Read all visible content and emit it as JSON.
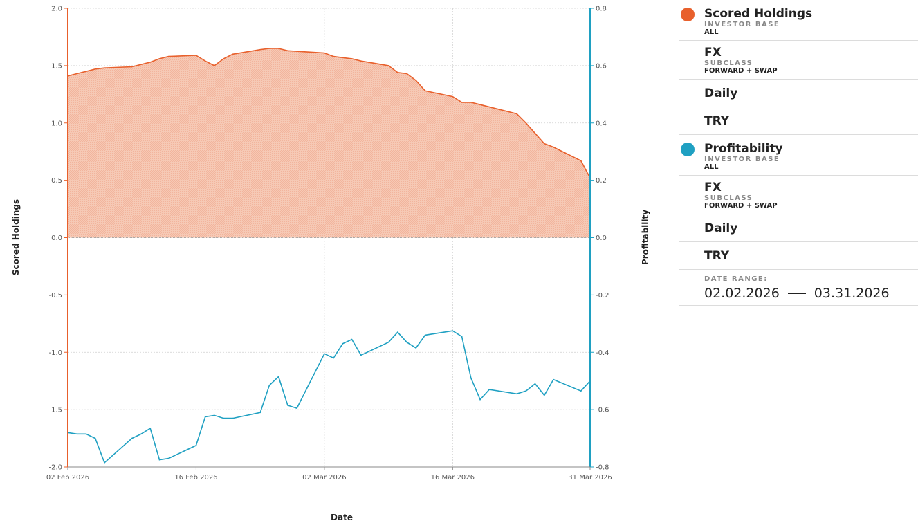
{
  "chart_data": {
    "type": "area+line",
    "xlabel": "Date",
    "ylabel_left": "Scored Holdings",
    "ylabel_right": "Profitability",
    "x_range": [
      "2026-02-02",
      "2026-03-31"
    ],
    "x_ticks": [
      {
        "date": "2026-02-02",
        "label": "02 Feb 2026"
      },
      {
        "date": "2026-02-16",
        "label": "16 Feb 2026"
      },
      {
        "date": "2026-03-02",
        "label": "02 Mar 2026"
      },
      {
        "date": "2026-03-16",
        "label": "16 Mar 2026"
      },
      {
        "date": "2026-03-31",
        "label": "31 Mar 2026"
      }
    ],
    "ylim_left": [
      -2.0,
      2.0
    ],
    "ylim_right": [
      -0.8,
      0.8
    ],
    "yticks_left": [
      "2.0",
      "1.5",
      "1.0",
      "0.5",
      "0.0",
      "-0.5",
      "-1.0",
      "-1.5",
      "-2.0"
    ],
    "yticks_right": [
      "0.8",
      "0.6",
      "0.4",
      "0.2",
      "0.0",
      "-0.2",
      "-0.4",
      "-0.6",
      "-0.8"
    ],
    "grid": true,
    "series": [
      {
        "name": "Scored Holdings",
        "axis": "left",
        "kind": "area",
        "color": "#e8602c",
        "fill": "#f4c2ae",
        "points": [
          [
            "2026-02-02",
            1.41
          ],
          [
            "2026-02-03",
            1.43
          ],
          [
            "2026-02-04",
            1.45
          ],
          [
            "2026-02-05",
            1.47
          ],
          [
            "2026-02-06",
            1.48
          ],
          [
            "2026-02-09",
            1.49
          ],
          [
            "2026-02-10",
            1.51
          ],
          [
            "2026-02-11",
            1.53
          ],
          [
            "2026-02-12",
            1.56
          ],
          [
            "2026-02-13",
            1.58
          ],
          [
            "2026-02-16",
            1.59
          ],
          [
            "2026-02-17",
            1.54
          ],
          [
            "2026-02-18",
            1.5
          ],
          [
            "2026-02-19",
            1.56
          ],
          [
            "2026-02-20",
            1.6
          ],
          [
            "2026-02-23",
            1.64
          ],
          [
            "2026-02-24",
            1.65
          ],
          [
            "2026-02-25",
            1.65
          ],
          [
            "2026-02-26",
            1.63
          ],
          [
            "2026-03-02",
            1.61
          ],
          [
            "2026-03-03",
            1.58
          ],
          [
            "2026-03-04",
            1.57
          ],
          [
            "2026-03-05",
            1.56
          ],
          [
            "2026-03-06",
            1.54
          ],
          [
            "2026-03-09",
            1.5
          ],
          [
            "2026-03-10",
            1.44
          ],
          [
            "2026-03-11",
            1.43
          ],
          [
            "2026-03-12",
            1.37
          ],
          [
            "2026-03-13",
            1.28
          ],
          [
            "2026-03-16",
            1.23
          ],
          [
            "2026-03-17",
            1.18
          ],
          [
            "2026-03-18",
            1.18
          ],
          [
            "2026-03-19",
            1.16
          ],
          [
            "2026-03-23",
            1.08
          ],
          [
            "2026-03-24",
            1.0
          ],
          [
            "2026-03-25",
            0.91
          ],
          [
            "2026-03-26",
            0.82
          ],
          [
            "2026-03-27",
            0.79
          ],
          [
            "2026-03-30",
            0.67
          ],
          [
            "2026-03-31",
            0.52
          ]
        ]
      },
      {
        "name": "Profitability",
        "axis": "right",
        "kind": "line",
        "color": "#1fa0c2",
        "points": [
          [
            "2026-02-02",
            -0.68
          ],
          [
            "2026-02-03",
            -0.685
          ],
          [
            "2026-02-04",
            -0.685
          ],
          [
            "2026-02-05",
            -0.7
          ],
          [
            "2026-02-06",
            -0.785
          ],
          [
            "2026-02-09",
            -0.7
          ],
          [
            "2026-02-10",
            -0.685
          ],
          [
            "2026-02-11",
            -0.665
          ],
          [
            "2026-02-12",
            -0.775
          ],
          [
            "2026-02-13",
            -0.77
          ],
          [
            "2026-02-16",
            -0.725
          ],
          [
            "2026-02-17",
            -0.625
          ],
          [
            "2026-02-18",
            -0.62
          ],
          [
            "2026-02-19",
            -0.63
          ],
          [
            "2026-02-20",
            -0.63
          ],
          [
            "2026-02-23",
            -0.61
          ],
          [
            "2026-02-24",
            -0.515
          ],
          [
            "2026-02-25",
            -0.485
          ],
          [
            "2026-02-26",
            -0.585
          ],
          [
            "2026-02-27",
            -0.595
          ],
          [
            "2026-03-02",
            -0.405
          ],
          [
            "2026-03-03",
            -0.42
          ],
          [
            "2026-03-04",
            -0.37
          ],
          [
            "2026-03-05",
            -0.355
          ],
          [
            "2026-03-06",
            -0.41
          ],
          [
            "2026-03-09",
            -0.365
          ],
          [
            "2026-03-10",
            -0.33
          ],
          [
            "2026-03-11",
            -0.365
          ],
          [
            "2026-03-12",
            -0.385
          ],
          [
            "2026-03-13",
            -0.34
          ],
          [
            "2026-03-16",
            -0.325
          ],
          [
            "2026-03-17",
            -0.345
          ],
          [
            "2026-03-18",
            -0.49
          ],
          [
            "2026-03-19",
            -0.565
          ],
          [
            "2026-03-20",
            -0.53
          ],
          [
            "2026-03-23",
            -0.545
          ],
          [
            "2026-03-24",
            -0.535
          ],
          [
            "2026-03-25",
            -0.51
          ],
          [
            "2026-03-26",
            -0.55
          ],
          [
            "2026-03-27",
            -0.495
          ],
          [
            "2026-03-30",
            -0.535
          ],
          [
            "2026-03-31",
            -0.5
          ]
        ]
      }
    ]
  },
  "legend": {
    "groups": [
      {
        "name": "Scored Holdings",
        "color": "#e8602c",
        "investor_base_label": "INVESTOR BASE",
        "investor_base_value": "ALL",
        "asset_class": "FX",
        "subclass_label": "SUBCLASS",
        "subclass_value": "FORWARD + SWAP",
        "frequency": "Daily",
        "currency": "TRY"
      },
      {
        "name": "Profitability",
        "color": "#1fa0c2",
        "investor_base_label": "INVESTOR BASE",
        "investor_base_value": "ALL",
        "asset_class": "FX",
        "subclass_label": "SUBCLASS",
        "subclass_value": "FORWARD + SWAP",
        "frequency": "Daily",
        "currency": "TRY"
      }
    ],
    "date_range_label": "DATE RANGE:",
    "date_from": "02.02.2026",
    "date_to": "03.31.2026"
  }
}
